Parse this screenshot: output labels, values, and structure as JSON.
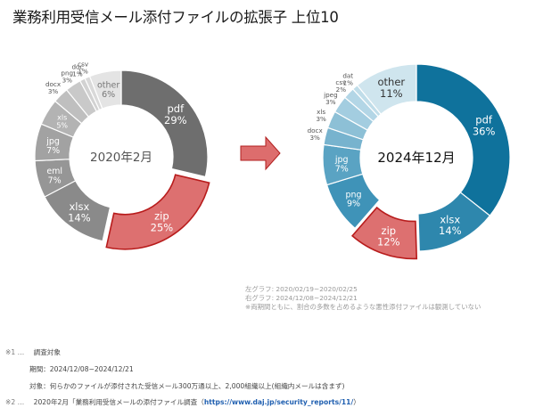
{
  "title": "業務利用受信メール添付ファイルの拡張子 上位10",
  "arrow_color": "#dd6d6d",
  "chart_data": [
    {
      "type": "pie",
      "variant": "donut",
      "center_label": "2020年2月",
      "start": "top, clockwise",
      "slices": [
        {
          "label": "pdf",
          "value": 29,
          "text": "29%",
          "color": "#6e6e6e"
        },
        {
          "label": "zip",
          "value": 25,
          "text": "25%",
          "color": "#dd7070",
          "highlight": true
        },
        {
          "label": "xlsx",
          "value": 14,
          "text": "14%",
          "color": "#8a8a8a"
        },
        {
          "label": "eml",
          "value": 7,
          "text": "7%",
          "color": "#969696"
        },
        {
          "label": "jpg",
          "value": 7,
          "text": "7%",
          "color": "#a2a2a2"
        },
        {
          "label": "xls",
          "value": 5,
          "text": "5%",
          "color": "#b3b3b3"
        },
        {
          "label": "docx",
          "value": 3,
          "text": "3%",
          "color": "#bfbfbf",
          "label_outside": true
        },
        {
          "label": "png",
          "value": 3,
          "text": "3%",
          "color": "#c9c9c9",
          "label_outside": true
        },
        {
          "label": "doc",
          "value": 1,
          "text": "1%",
          "color": "#d2d2d2",
          "label_outside": true
        },
        {
          "label": "csv",
          "value": 1,
          "text": "1%",
          "color": "#d9d9d9",
          "label_outside": true
        },
        {
          "label": "other",
          "value": 6,
          "text": "6%",
          "color": "#e4e4e4"
        }
      ]
    },
    {
      "type": "pie",
      "variant": "donut",
      "center_label": "2024年12月",
      "start": "top, clockwise",
      "slices": [
        {
          "label": "pdf",
          "value": 36,
          "text": "36%",
          "color": "#0f729c"
        },
        {
          "label": "xlsx",
          "value": 14,
          "text": "14%",
          "color": "#2e87ad"
        },
        {
          "label": "zip",
          "value": 12,
          "text": "12%",
          "color": "#dd7070",
          "highlight": true
        },
        {
          "label": "png",
          "value": 9,
          "text": "9%",
          "color": "#3f93b8"
        },
        {
          "label": "jpg",
          "value": 7,
          "text": "7%",
          "color": "#5aa3c3"
        },
        {
          "label": "docx",
          "value": 3,
          "text": "3%",
          "color": "#77b3ce",
          "label_outside": true
        },
        {
          "label": "xls",
          "value": 3,
          "text": "3%",
          "color": "#8dc0d6",
          "label_outside": true
        },
        {
          "label": "jpeg",
          "value": 3,
          "text": "3%",
          "color": "#a3cde0",
          "label_outside": true
        },
        {
          "label": "csv",
          "value": 2,
          "text": "2%",
          "color": "#b3d6e6",
          "label_outside": true
        },
        {
          "label": "dat",
          "value": 1,
          "text": "1%",
          "color": "#c0dde9",
          "label_outside": true
        },
        {
          "label": "other",
          "value": 11,
          "text": "11%",
          "color": "#cfe5ee"
        }
      ]
    }
  ],
  "notes": [
    "左グラフ: 2020/02/19~2020/02/25",
    "右グラフ: 2024/12/08~2024/12/21",
    "※両期間ともに、割合の多数を占めるような悪性添付ファイルは観測していない"
  ],
  "footnotes": {
    "fn1_mark": "※1 …",
    "fn1_title": "調査対象",
    "fn1_period": "期間：2024/12/08~2024/12/21",
    "fn1_target": "対象：何らかのファイルが添付された受信メール300万通以上、2,000組織以上(組織内メールは含まず)",
    "fn2_mark": "※2 …",
    "fn2_text": "2020年2月「業務利用受信メールの添付ファイル調査（",
    "fn2_link": "https://www.daj.jp/security_reports/11/",
    "fn2_close": "）"
  }
}
